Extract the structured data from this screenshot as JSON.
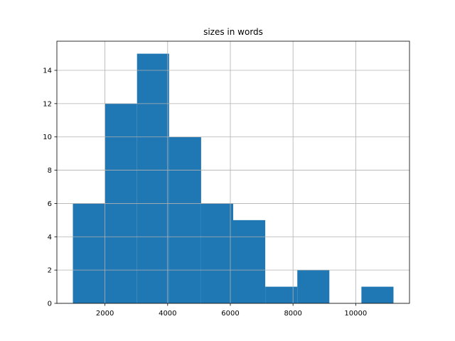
{
  "chart_data": {
    "type": "histogram",
    "title": "sizes in words",
    "bins": [
      977,
      2000,
      3023,
      4046,
      5068,
      6091,
      7114,
      8137,
      9159,
      10182,
      11205
    ],
    "counts": [
      6,
      12,
      15,
      10,
      6,
      5,
      1,
      2,
      0,
      1
    ],
    "color": "#1f77b4",
    "xlim": [
      466,
      11716
    ],
    "xticks": [
      2000,
      4000,
      6000,
      8000,
      10000
    ],
    "ylim": [
      0,
      15.75
    ],
    "yticks": [
      0,
      2,
      4,
      6,
      8,
      10,
      12,
      14
    ],
    "grid": true
  }
}
